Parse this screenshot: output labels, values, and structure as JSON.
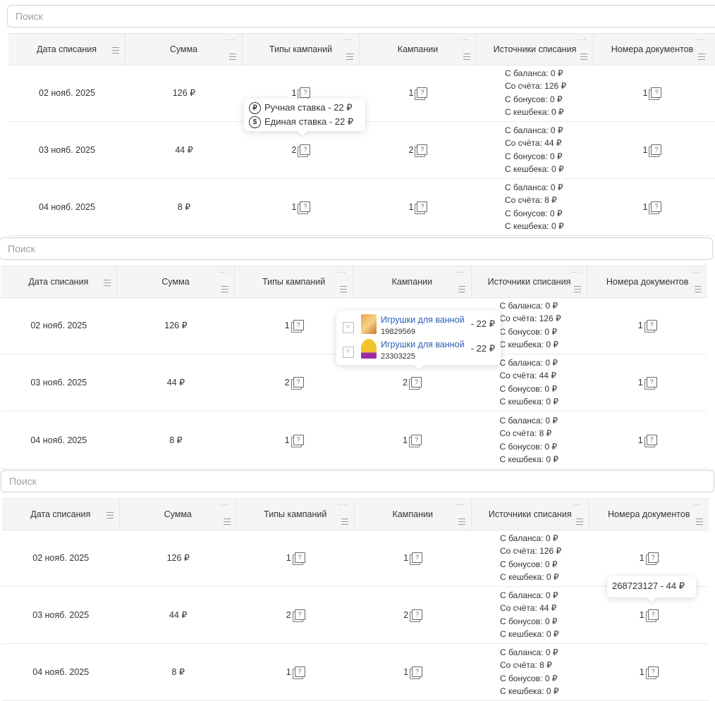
{
  "search": {
    "placeholder": "Поиск"
  },
  "columns": [
    "Дата списания",
    "Сумма",
    "Типы кампаний",
    "Кампании",
    "Источники списания",
    "Номера документов"
  ],
  "rows": [
    {
      "date": "02 нояб. 2025",
      "amount": "126 ₽",
      "types": "1",
      "campaigns": "1",
      "sources": [
        "С баланса: 0 ₽",
        "Со счёта: 126 ₽",
        "С бонусов: 0 ₽",
        "С кешбека: 0 ₽"
      ],
      "docs": "1"
    },
    {
      "date": "03 нояб. 2025",
      "amount": "44 ₽",
      "types": "2",
      "campaigns": "2",
      "sources": [
        "С баланса: 0 ₽",
        "Со счёта: 44 ₽",
        "С бонусов: 0 ₽",
        "С кешбека: 0 ₽"
      ],
      "docs": "1"
    },
    {
      "date": "04 нояб. 2025",
      "amount": "8 ₽",
      "types": "1",
      "campaigns": "1",
      "sources": [
        "С баланса: 0 ₽",
        "Со счёта: 8 ₽",
        "С бонусов: 0 ₽",
        "С кешбека: 0 ₽"
      ],
      "docs": "1"
    }
  ],
  "tooltip_types": [
    {
      "icon": "coin-hand-icon",
      "text": "Ручная ставка - 22 ₽"
    },
    {
      "icon": "dollar-coin-icon",
      "text": "Единая ставка - 22 ₽"
    }
  ],
  "tooltip_campaigns": [
    {
      "name": "Игрушки для ванной",
      "id": "19829569",
      "price": "- 22 ₽"
    },
    {
      "name": "Игрушки для ванной",
      "id": "23303225",
      "price": "- 22 ₽"
    }
  ],
  "tooltip_docs": {
    "text": "268723127 - 44 ₽"
  },
  "colors": {
    "link": "#2b5db3",
    "header_bg": "#f4f5f7",
    "border": "#e4e6ea"
  }
}
